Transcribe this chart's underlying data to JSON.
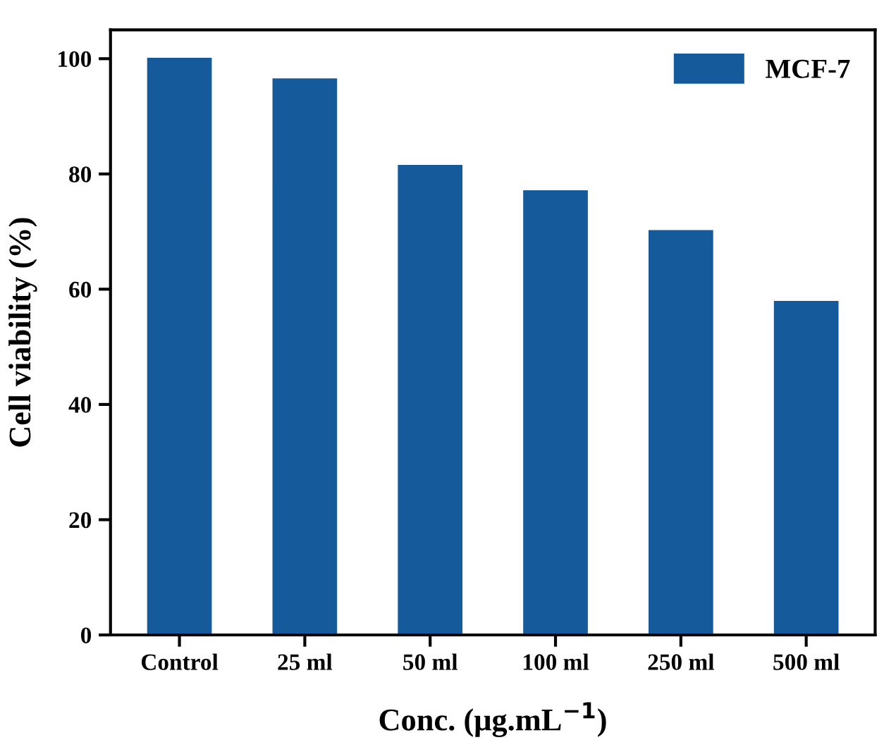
{
  "chart_data": {
    "type": "bar",
    "xlabel": "Conc. (μg.mL$^{−1}$)",
    "ylabel": "Cell viability (%)",
    "categories": [
      "Control",
      "25 ml",
      "50 ml",
      "100 ml",
      "250 ml",
      "500 ml"
    ],
    "series": [
      {
        "name": "MCF-7",
        "color": "#155a9a",
        "values": [
          100,
          96.4,
          81.4,
          77.0,
          70.1,
          57.8
        ]
      }
    ],
    "ylim": [
      0,
      105
    ],
    "yticks": [
      0,
      20,
      40,
      60,
      80,
      100
    ],
    "grid": false,
    "legend": "top right"
  }
}
